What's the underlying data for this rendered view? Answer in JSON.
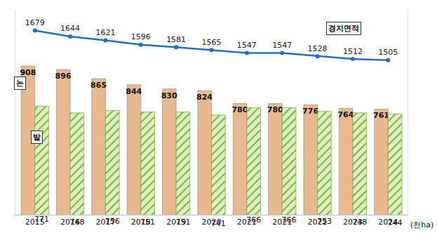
{
  "chart_data": {
    "type": "bar",
    "categories": [
      "2015",
      "2016",
      "2017",
      "2018",
      "2019",
      "2020",
      "2021",
      "2021",
      "2022",
      "2023",
      "2024"
    ],
    "series": [
      {
        "name": "논",
        "type": "bar",
        "color": "#E8B88E",
        "values": [
          908,
          896,
          865,
          844,
          830,
          824,
          780,
          780,
          776,
          764,
          761
        ]
      },
      {
        "name": "밭",
        "type": "bar",
        "color": "#DCEFBE",
        "marker": "hatch",
        "values": [
          771,
          748,
          756,
          751,
          751,
          741,
          766,
          766,
          753,
          748,
          744
        ]
      },
      {
        "name": "경지면적",
        "type": "line",
        "axis": "y2",
        "color": "#1F6FC5",
        "marker": "circle",
        "values": [
          1679,
          1644,
          1621,
          1596,
          1581,
          1565,
          1547,
          1547,
          1528,
          1512,
          1505
        ]
      }
    ],
    "ylim": [
      400,
      1100
    ],
    "y2lim": [
      600,
      1800
    ],
    "annotations": [
      "(천ha)"
    ],
    "data_labels": true,
    "tick_labels": "x",
    "grid": false
  }
}
